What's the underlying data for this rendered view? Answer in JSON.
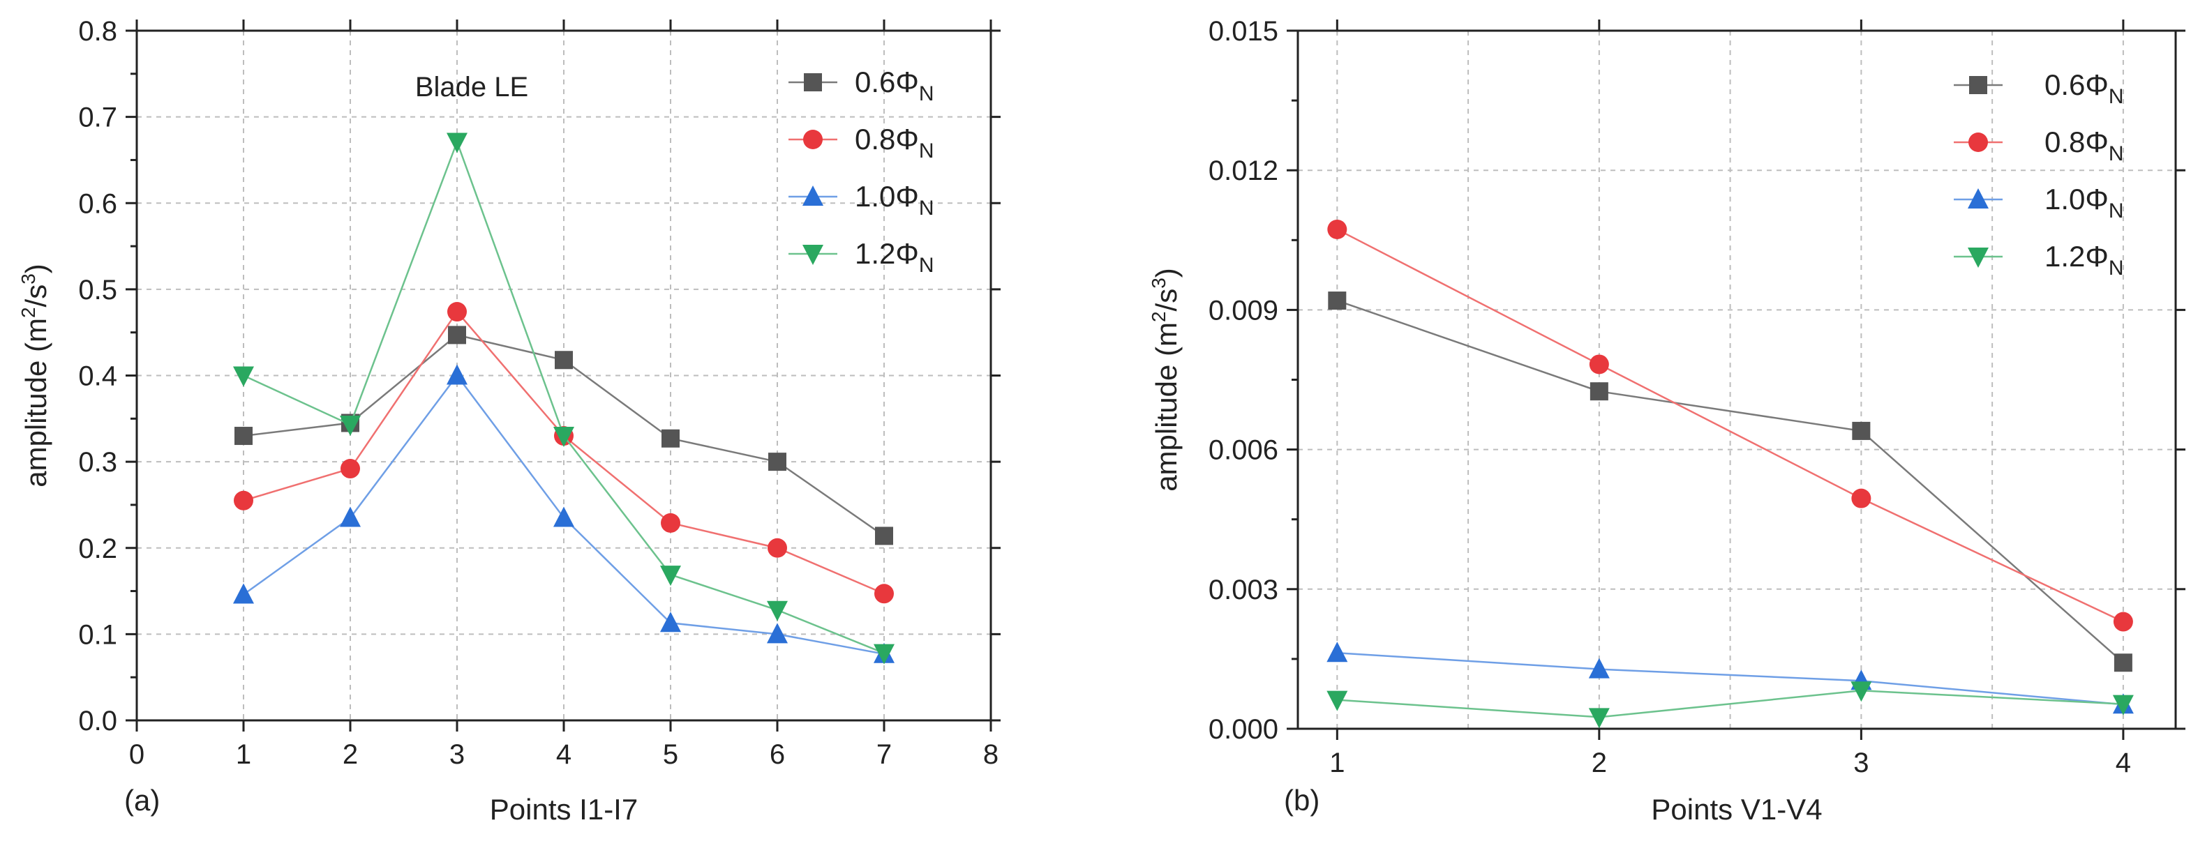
{
  "chart_data": [
    {
      "type": "line",
      "panel_label": "(a)",
      "annotation": "Blade LE",
      "xlabel": "Points I1-I7",
      "ylabel_parts": {
        "prefix": "amplitude (m",
        "sup1": "2",
        "mid": "/s",
        "sup2": "3",
        "suffix": ")"
      },
      "xlim": [
        0,
        8
      ],
      "ylim": [
        0,
        0.8
      ],
      "x_ticks": [
        0,
        1,
        2,
        3,
        4,
        5,
        6,
        7,
        8
      ],
      "x_tick_labels": [
        "0",
        "1",
        "2",
        "3",
        "4",
        "5",
        "6",
        "7",
        "8"
      ],
      "y_ticks": [
        0,
        0.1,
        0.2,
        0.3,
        0.4,
        0.5,
        0.6,
        0.7,
        0.8
      ],
      "y_tick_labels": [
        "0.0",
        "0.1",
        "0.2",
        "0.3",
        "0.4",
        "0.5",
        "0.6",
        "0.7",
        "0.8"
      ],
      "grid": true,
      "legend_position": "top-right",
      "x": [
        1,
        2,
        3,
        4,
        5,
        6,
        7
      ],
      "series": [
        {
          "name_main": "0.6Φ",
          "name_sub": "N",
          "color": "#555555",
          "line_color": "#7a7a7a",
          "marker": "square",
          "values": [
            0.33,
            0.345,
            0.447,
            0.418,
            0.327,
            0.3,
            0.214
          ]
        },
        {
          "name_main": "0.8Φ",
          "name_sub": "N",
          "color": "#e8383d",
          "line_color": "#f07070",
          "marker": "circle",
          "values": [
            0.255,
            0.292,
            0.474,
            0.33,
            0.229,
            0.2,
            0.147
          ]
        },
        {
          "name_main": "1.0Φ",
          "name_sub": "N",
          "color": "#2a6fd6",
          "line_color": "#6f9fe6",
          "marker": "triangle-up",
          "values": [
            0.146,
            0.235,
            0.4,
            0.235,
            0.113,
            0.1,
            0.077
          ]
        },
        {
          "name_main": "1.2Φ",
          "name_sub": "N",
          "color": "#2aa860",
          "line_color": "#6cc28d",
          "marker": "triangle-down",
          "values": [
            0.4,
            0.343,
            0.671,
            0.33,
            0.169,
            0.128,
            0.078
          ]
        }
      ]
    },
    {
      "type": "line",
      "panel_label": "(b)",
      "xlabel": "Points V1-V4",
      "ylabel_parts": {
        "prefix": "amplitude (m",
        "sup1": "2",
        "mid": "/s",
        "sup2": "3",
        "suffix": ")"
      },
      "xlim": [
        0.85,
        4.2
      ],
      "ylim": [
        0,
        0.015
      ],
      "x_ticks": [
        1,
        2,
        3,
        4
      ],
      "x_tick_labels": [
        "1",
        "2",
        "3",
        "4"
      ],
      "x_minor_ticks": [
        1.5,
        2.5,
        3.5
      ],
      "y_ticks": [
        0,
        0.003,
        0.006,
        0.009,
        0.012,
        0.015
      ],
      "y_tick_labels": [
        "0.000",
        "0.003",
        "0.006",
        "0.009",
        "0.012",
        "0.015"
      ],
      "grid": true,
      "legend_position": "top-right",
      "x": [
        1,
        2,
        3,
        4
      ],
      "series": [
        {
          "name_main": "0.6Φ",
          "name_sub": "N",
          "color": "#555555",
          "line_color": "#7a7a7a",
          "marker": "square",
          "values": [
            0.0092,
            0.00725,
            0.0064,
            0.00142
          ]
        },
        {
          "name_main": "0.8Φ",
          "name_sub": "N",
          "color": "#e8383d",
          "line_color": "#f07070",
          "marker": "circle",
          "values": [
            0.01073,
            0.00783,
            0.00495,
            0.0023
          ]
        },
        {
          "name_main": "1.0Φ",
          "name_sub": "N",
          "color": "#2a6fd6",
          "line_color": "#6f9fe6",
          "marker": "triangle-up",
          "values": [
            0.00163,
            0.00128,
            0.00103,
            0.00052
          ]
        },
        {
          "name_main": "1.2Φ",
          "name_sub": "N",
          "color": "#2aa860",
          "line_color": "#6cc28d",
          "marker": "triangle-down",
          "values": [
            0.00062,
            0.00025,
            0.00082,
            0.00053
          ]
        }
      ]
    }
  ]
}
